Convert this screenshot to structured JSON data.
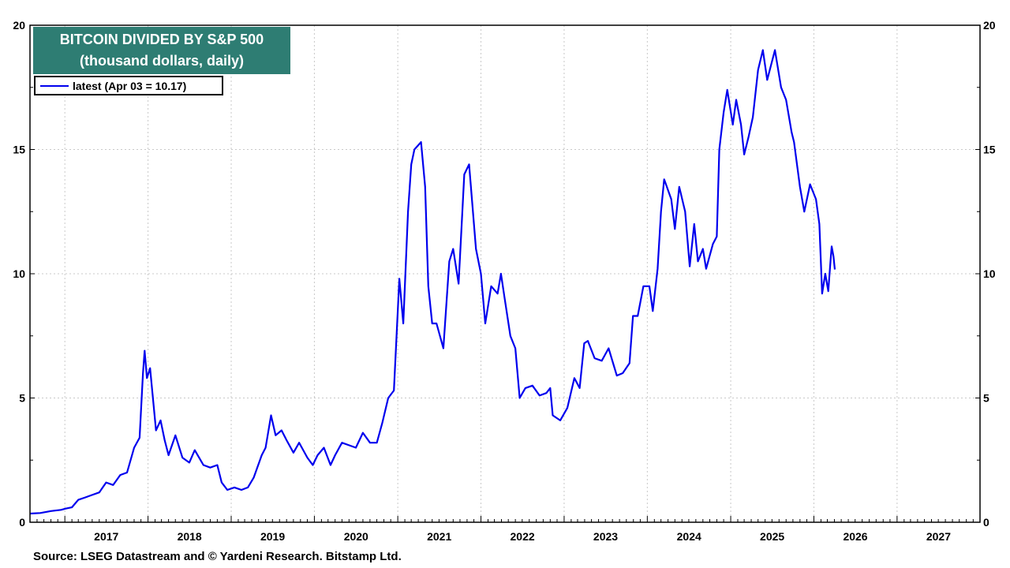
{
  "header": {
    "title_line1": "BITCOIN DIVIDED BY S&P 500",
    "title_line2": "(thousand dollars, daily)"
  },
  "legend": {
    "label": "latest (Apr 03 = 10.17)",
    "color": "#0000ee"
  },
  "footer": {
    "source": "Source: LSEG Datastream and © Yardeni Research. Bitstamp Ltd."
  },
  "colors": {
    "title_bg": "#2e7d73",
    "series": "#0000ee",
    "grid": "#c8c8c8"
  },
  "chart_data": {
    "type": "line",
    "title": "BITCOIN DIVIDED BY S&P 500",
    "subtitle": "(thousand dollars, daily)",
    "xlabel": "",
    "ylabel": "",
    "ylim": [
      0,
      20
    ],
    "xlim": [
      "2016-08-01",
      "2027-12-31"
    ],
    "y_ticks": [
      "0",
      "5",
      "10",
      "15",
      "20"
    ],
    "x_tick_labels": [
      "2017",
      "2018",
      "2019",
      "2020",
      "2021",
      "2022",
      "2023",
      "2024",
      "2025",
      "2026",
      "2027"
    ],
    "grid": true,
    "legend_position": "top-left",
    "series": [
      {
        "name": "latest (Apr 03 = 10.17)",
        "points": [
          [
            "2016-08-01",
            0.35
          ],
          [
            "2016-09-15",
            0.37
          ],
          [
            "2016-11-01",
            0.45
          ],
          [
            "2016-12-15",
            0.5
          ],
          [
            "2017-01-05",
            0.55
          ],
          [
            "2017-02-01",
            0.6
          ],
          [
            "2017-03-01",
            0.9
          ],
          [
            "2017-04-01",
            1.0
          ],
          [
            "2017-05-01",
            1.1
          ],
          [
            "2017-06-01",
            1.2
          ],
          [
            "2017-07-01",
            1.6
          ],
          [
            "2017-08-01",
            1.5
          ],
          [
            "2017-09-01",
            1.9
          ],
          [
            "2017-10-01",
            2.0
          ],
          [
            "2017-11-01",
            3.0
          ],
          [
            "2017-11-25",
            3.4
          ],
          [
            "2017-12-10",
            6.0
          ],
          [
            "2017-12-17",
            6.9
          ],
          [
            "2017-12-27",
            5.8
          ],
          [
            "2018-01-10",
            6.2
          ],
          [
            "2018-02-05",
            3.7
          ],
          [
            "2018-02-25",
            4.1
          ],
          [
            "2018-03-15",
            3.3
          ],
          [
            "2018-04-01",
            2.7
          ],
          [
            "2018-05-01",
            3.5
          ],
          [
            "2018-06-01",
            2.6
          ],
          [
            "2018-07-01",
            2.4
          ],
          [
            "2018-07-25",
            2.9
          ],
          [
            "2018-09-01",
            2.3
          ],
          [
            "2018-10-01",
            2.2
          ],
          [
            "2018-11-01",
            2.3
          ],
          [
            "2018-11-20",
            1.6
          ],
          [
            "2018-12-15",
            1.3
          ],
          [
            "2019-01-15",
            1.4
          ],
          [
            "2019-02-15",
            1.3
          ],
          [
            "2019-03-15",
            1.4
          ],
          [
            "2019-04-10",
            1.8
          ],
          [
            "2019-05-15",
            2.7
          ],
          [
            "2019-06-01",
            3.0
          ],
          [
            "2019-06-25",
            4.3
          ],
          [
            "2019-07-15",
            3.5
          ],
          [
            "2019-08-10",
            3.7
          ],
          [
            "2019-09-01",
            3.3
          ],
          [
            "2019-10-01",
            2.8
          ],
          [
            "2019-10-26",
            3.2
          ],
          [
            "2019-12-01",
            2.6
          ],
          [
            "2019-12-25",
            2.3
          ],
          [
            "2020-01-15",
            2.7
          ],
          [
            "2020-02-12",
            3.0
          ],
          [
            "2020-03-12",
            2.3
          ],
          [
            "2020-04-01",
            2.7
          ],
          [
            "2020-05-01",
            3.2
          ],
          [
            "2020-06-01",
            3.1
          ],
          [
            "2020-07-01",
            3.0
          ],
          [
            "2020-08-01",
            3.6
          ],
          [
            "2020-09-01",
            3.2
          ],
          [
            "2020-10-01",
            3.2
          ],
          [
            "2020-10-25",
            4.0
          ],
          [
            "2020-11-20",
            5.0
          ],
          [
            "2020-12-15",
            5.3
          ],
          [
            "2021-01-08",
            9.8
          ],
          [
            "2021-01-25",
            8.0
          ],
          [
            "2021-02-15",
            12.5
          ],
          [
            "2021-03-01",
            14.4
          ],
          [
            "2021-03-15",
            15.0
          ],
          [
            "2021-04-13",
            15.3
          ],
          [
            "2021-05-01",
            13.5
          ],
          [
            "2021-05-15",
            9.5
          ],
          [
            "2021-06-01",
            8.0
          ],
          [
            "2021-06-20",
            8.0
          ],
          [
            "2021-07-20",
            7.0
          ],
          [
            "2021-08-15",
            10.5
          ],
          [
            "2021-09-01",
            11.0
          ],
          [
            "2021-09-25",
            9.6
          ],
          [
            "2021-10-20",
            14.0
          ],
          [
            "2021-11-10",
            14.4
          ],
          [
            "2021-12-10",
            11.0
          ],
          [
            "2022-01-01",
            10.0
          ],
          [
            "2022-01-20",
            8.0
          ],
          [
            "2022-02-15",
            9.5
          ],
          [
            "2022-03-15",
            9.2
          ],
          [
            "2022-03-30",
            10.0
          ],
          [
            "2022-04-15",
            9.0
          ],
          [
            "2022-05-10",
            7.5
          ],
          [
            "2022-06-01",
            7.0
          ],
          [
            "2022-06-20",
            5.0
          ],
          [
            "2022-07-15",
            5.4
          ],
          [
            "2022-08-15",
            5.5
          ],
          [
            "2022-09-15",
            5.1
          ],
          [
            "2022-10-15",
            5.2
          ],
          [
            "2022-11-01",
            5.4
          ],
          [
            "2022-11-12",
            4.3
          ],
          [
            "2022-12-15",
            4.1
          ],
          [
            "2023-01-15",
            4.6
          ],
          [
            "2023-02-15",
            5.8
          ],
          [
            "2023-03-10",
            5.4
          ],
          [
            "2023-03-30",
            7.2
          ],
          [
            "2023-04-15",
            7.3
          ],
          [
            "2023-05-15",
            6.6
          ],
          [
            "2023-06-15",
            6.5
          ],
          [
            "2023-07-15",
            7.0
          ],
          [
            "2023-08-20",
            5.9
          ],
          [
            "2023-09-15",
            6.0
          ],
          [
            "2023-10-15",
            6.4
          ],
          [
            "2023-10-30",
            8.3
          ],
          [
            "2023-11-20",
            8.3
          ],
          [
            "2023-12-15",
            9.5
          ],
          [
            "2024-01-10",
            9.5
          ],
          [
            "2024-01-25",
            8.5
          ],
          [
            "2024-02-15",
            10.2
          ],
          [
            "2024-03-01",
            12.5
          ],
          [
            "2024-03-15",
            13.8
          ],
          [
            "2024-04-15",
            13.0
          ],
          [
            "2024-05-01",
            11.8
          ],
          [
            "2024-05-20",
            13.5
          ],
          [
            "2024-06-15",
            12.5
          ],
          [
            "2024-07-05",
            10.3
          ],
          [
            "2024-07-25",
            12.0
          ],
          [
            "2024-08-10",
            10.5
          ],
          [
            "2024-09-01",
            11.0
          ],
          [
            "2024-09-15",
            10.2
          ],
          [
            "2024-10-15",
            11.2
          ],
          [
            "2024-11-01",
            11.5
          ],
          [
            "2024-11-12",
            15.0
          ],
          [
            "2024-12-01",
            16.5
          ],
          [
            "2024-12-17",
            17.4
          ],
          [
            "2025-01-10",
            16.0
          ],
          [
            "2025-01-25",
            17.0
          ],
          [
            "2025-02-15",
            16.0
          ],
          [
            "2025-03-01",
            14.8
          ],
          [
            "2025-03-20",
            15.5
          ],
          [
            "2025-04-08",
            16.3
          ],
          [
            "2025-05-01",
            18.2
          ],
          [
            "2025-05-22",
            19.0
          ],
          [
            "2025-06-10",
            17.8
          ],
          [
            "2025-07-14",
            19.0
          ],
          [
            "2025-08-10",
            17.5
          ],
          [
            "2025-09-01",
            17.0
          ],
          [
            "2025-09-25",
            15.7
          ],
          [
            "2025-10-06",
            15.3
          ],
          [
            "2025-11-01",
            13.5
          ],
          [
            "2025-11-20",
            12.5
          ],
          [
            "2025-12-15",
            13.6
          ],
          [
            "2026-01-10",
            13.0
          ],
          [
            "2026-01-25",
            12.0
          ],
          [
            "2026-02-06",
            9.2
          ],
          [
            "2026-02-20",
            10.0
          ],
          [
            "2026-03-05",
            9.3
          ],
          [
            "2026-03-15",
            10.5
          ],
          [
            "2026-03-20",
            11.1
          ],
          [
            "2026-03-28",
            10.7
          ],
          [
            "2026-04-03",
            10.17
          ]
        ]
      }
    ]
  }
}
